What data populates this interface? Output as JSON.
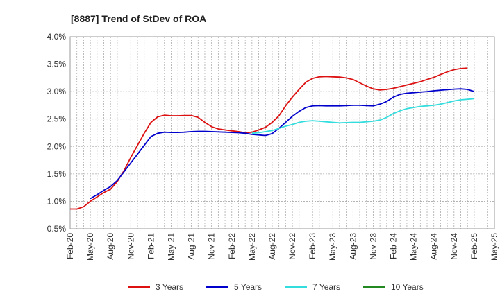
{
  "chart_data": {
    "type": "line",
    "title": "[8887]  Trend of StDev of ROA",
    "xlabel": "",
    "ylabel": "",
    "x_ticks": [
      "Feb-20",
      "May-20",
      "Aug-20",
      "Nov-20",
      "Feb-21",
      "May-21",
      "Aug-21",
      "Nov-21",
      "Feb-22",
      "May-22",
      "Aug-22",
      "Nov-22",
      "Feb-23",
      "May-23",
      "Aug-23",
      "Nov-23",
      "Feb-24",
      "May-24",
      "Aug-24",
      "Nov-24",
      "Feb-25",
      "May-25"
    ],
    "y_ticks": [
      "0.5%",
      "1.0%",
      "1.5%",
      "2.0%",
      "2.5%",
      "3.0%",
      "3.5%",
      "4.0%"
    ],
    "ylim": [
      0.5,
      4.0
    ],
    "grid": true,
    "legend_position": "bottom",
    "series": [
      {
        "name": "3 Years",
        "color": "#dd1111",
        "values": [
          0.86,
          0.86,
          0.9,
          1.0,
          1.08,
          1.16,
          1.22,
          1.36,
          1.56,
          1.8,
          2.02,
          2.24,
          2.44,
          2.54,
          2.57,
          2.56,
          2.56,
          2.565,
          2.565,
          2.53,
          2.44,
          2.36,
          2.32,
          2.3,
          2.285,
          2.27,
          2.25,
          2.26,
          2.3,
          2.35,
          2.44,
          2.56,
          2.74,
          2.9,
          3.04,
          3.17,
          3.24,
          3.27,
          3.275,
          3.27,
          3.265,
          3.25,
          3.22,
          3.16,
          3.1,
          3.05,
          3.03,
          3.04,
          3.06,
          3.09,
          3.12,
          3.15,
          3.18,
          3.22,
          3.26,
          3.31,
          3.36,
          3.4,
          3.42,
          3.43
        ]
      },
      {
        "name": "5 Years",
        "color": "#0000cc",
        "values": [
          null,
          null,
          null,
          1.05,
          1.12,
          1.2,
          1.27,
          1.38,
          1.54,
          1.7,
          1.86,
          2.02,
          2.18,
          2.24,
          2.26,
          2.255,
          2.255,
          2.26,
          2.27,
          2.275,
          2.275,
          2.27,
          2.265,
          2.26,
          2.255,
          2.25,
          2.24,
          2.22,
          2.21,
          2.2,
          2.235,
          2.33,
          2.44,
          2.55,
          2.64,
          2.71,
          2.74,
          2.745,
          2.74,
          2.74,
          2.74,
          2.745,
          2.75,
          2.75,
          2.745,
          2.74,
          2.77,
          2.82,
          2.9,
          2.95,
          2.97,
          2.98,
          2.99,
          3.0,
          3.015,
          3.025,
          3.035,
          3.045,
          3.05,
          3.04,
          3.0
        ]
      },
      {
        "name": "7 Years",
        "color": "#33dddd",
        "values": [
          null,
          null,
          null,
          null,
          null,
          null,
          null,
          null,
          null,
          null,
          null,
          null,
          null,
          null,
          null,
          null,
          null,
          null,
          null,
          null,
          null,
          null,
          null,
          null,
          null,
          null,
          null,
          2.24,
          2.25,
          2.27,
          2.29,
          2.33,
          2.37,
          2.4,
          2.44,
          2.46,
          2.47,
          2.46,
          2.45,
          2.44,
          2.43,
          2.435,
          2.44,
          2.44,
          2.45,
          2.46,
          2.48,
          2.53,
          2.6,
          2.65,
          2.69,
          2.71,
          2.73,
          2.74,
          2.75,
          2.77,
          2.8,
          2.83,
          2.85,
          2.86,
          2.87
        ]
      },
      {
        "name": "10 Years",
        "color": "#228822",
        "values": []
      }
    ]
  }
}
